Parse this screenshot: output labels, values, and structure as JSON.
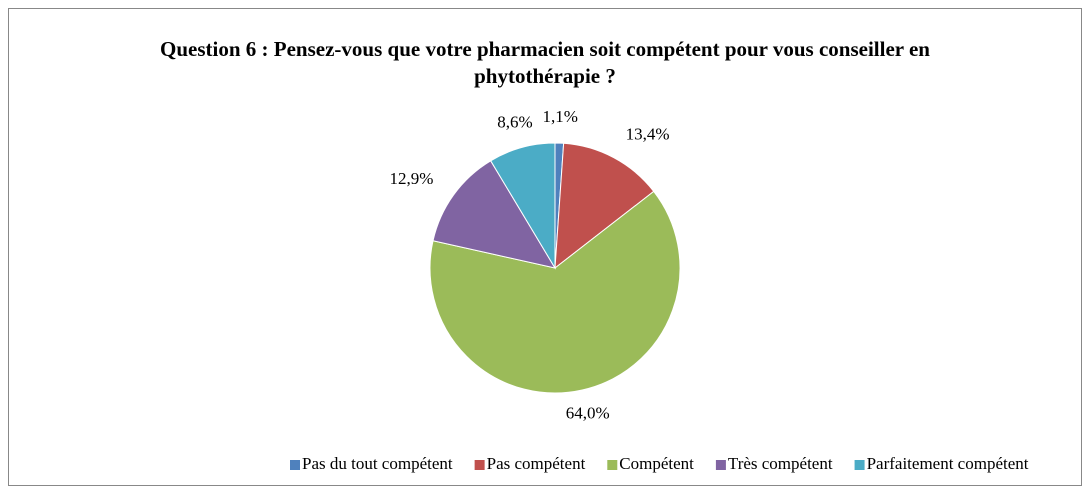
{
  "chart_data": {
    "type": "pie",
    "title": "Question  6 : Pensez-vous que votre pharmacien soit compétent pour vous conseiller en phytothérapie ?",
    "categories": [
      "Pas du tout compétent",
      "Pas compétent",
      "Compétent",
      "Très compétent",
      "Parfaitement compétent"
    ],
    "values": [
      1.1,
      13.4,
      64.0,
      12.9,
      8.6
    ],
    "value_labels": [
      "1,1%",
      "13,4%",
      "64,0%",
      "12,9%",
      "8,6%"
    ],
    "colors": [
      "#4f81bd",
      "#c0504d",
      "#9bbb59",
      "#8064a2",
      "#4bacc6"
    ],
    "legend": "bottom"
  }
}
